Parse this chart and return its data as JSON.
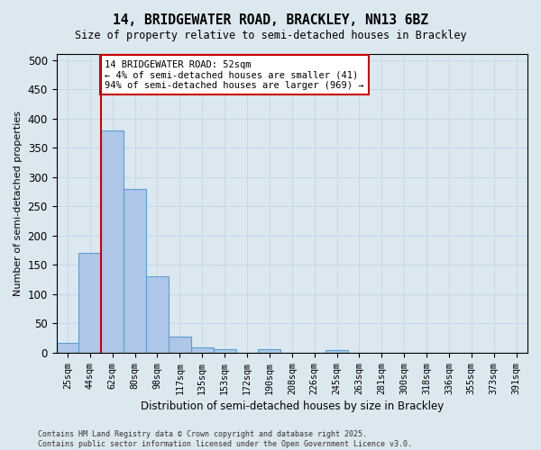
{
  "title_line1": "14, BRIDGEWATER ROAD, BRACKLEY, NN13 6BZ",
  "title_line2": "Size of property relative to semi-detached houses in Brackley",
  "xlabel": "Distribution of semi-detached houses by size in Brackley",
  "ylabel": "Number of semi-detached properties",
  "bins": [
    "25sqm",
    "44sqm",
    "62sqm",
    "80sqm",
    "98sqm",
    "117sqm",
    "135sqm",
    "153sqm",
    "172sqm",
    "190sqm",
    "208sqm",
    "226sqm",
    "245sqm",
    "263sqm",
    "281sqm",
    "300sqm",
    "318sqm",
    "336sqm",
    "355sqm",
    "373sqm",
    "391sqm"
  ],
  "values": [
    17,
    170,
    380,
    280,
    130,
    28,
    9,
    6,
    0,
    6,
    0,
    0,
    5,
    0,
    0,
    0,
    0,
    0,
    0,
    0,
    0
  ],
  "bar_color": "#aec6e8",
  "bar_edge_color": "#5a9fd4",
  "vline_pos": 1.5,
  "annotation_text": "14 BRIDGEWATER ROAD: 52sqm\n← 4% of semi-detached houses are smaller (41)\n94% of semi-detached houses are larger (969) →",
  "annotation_box_facecolor": "#ffffff",
  "annotation_box_edgecolor": "#cc0000",
  "vline_color": "#cc0000",
  "grid_color": "#c8d8e8",
  "background_color": "#dce8f0",
  "footnote": "Contains HM Land Registry data © Crown copyright and database right 2025.\nContains public sector information licensed under the Open Government Licence v3.0.",
  "ylim": [
    0,
    510
  ],
  "yticks": [
    0,
    50,
    100,
    150,
    200,
    250,
    300,
    350,
    400,
    450,
    500
  ]
}
